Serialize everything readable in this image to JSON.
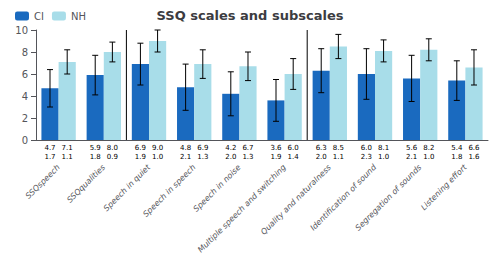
{
  "chart_data": {
    "type": "bar",
    "title": "SSQ scales and subscales",
    "categories": [
      "SSQspeech",
      "SSQqualities",
      "Speech in quiet",
      "Speech in speech",
      "Speech in noise",
      "Multiple speech and switching",
      "Quality and naturalness",
      "Identification of sound",
      "Segregation of sounds",
      "Listening effort"
    ],
    "series": [
      {
        "name": "CI",
        "color": "#1a6abf",
        "values": [
          4.7,
          5.9,
          6.9,
          4.8,
          4.2,
          3.6,
          6.3,
          6.0,
          5.6,
          5.4
        ],
        "value_labels": [
          "4.7",
          "5.9",
          "6.9",
          "4.8",
          "4.2",
          "3.6",
          "6.3",
          "6.0",
          "5.6",
          "5.4"
        ],
        "errors": [
          1.7,
          1.8,
          1.9,
          2.1,
          2.0,
          1.9,
          2.0,
          2.3,
          2.1,
          1.8
        ],
        "error_labels": [
          "1.7",
          "1.8",
          "1.9",
          "2.1",
          "2.0",
          "1.9",
          "2.0",
          "2.3",
          "2.1",
          "1.8"
        ]
      },
      {
        "name": "NH",
        "color": "#a8dde9",
        "values": [
          7.1,
          8.0,
          9.0,
          6.9,
          6.7,
          6.0,
          8.5,
          8.1,
          8.2,
          6.6
        ],
        "value_labels": [
          "7.1",
          "8.0",
          "9.0",
          "6.9",
          "6.7",
          "6.0",
          "8.5",
          "8.1",
          "8.2",
          "6.6"
        ],
        "errors": [
          1.1,
          0.9,
          1.0,
          1.3,
          1.3,
          1.4,
          1.1,
          1.0,
          1.0,
          1.6
        ],
        "error_labels": [
          "1.1",
          "0.9",
          "1.0",
          "1.3",
          "1.3",
          "1.4",
          "1.1",
          "1.0",
          "1.0",
          "1.6"
        ]
      }
    ],
    "dividers_before": [
      "Speech in quiet",
      "Quality and naturalness"
    ],
    "ylim": [
      0,
      10
    ],
    "yticks": [
      0,
      2,
      4,
      6,
      8,
      10
    ],
    "grid": false,
    "legend": "upper left"
  }
}
